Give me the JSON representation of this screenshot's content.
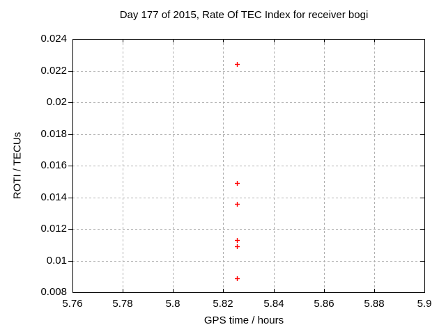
{
  "chart_data": {
    "type": "scatter",
    "title": "Day 177 of 2015, Rate Of TEC Index for receiver bogi",
    "xlabel": "GPS time / hours",
    "ylabel": "ROTI / TECUs",
    "xlim": [
      5.76,
      5.9
    ],
    "ylim": [
      0.008,
      0.024
    ],
    "xticks": [
      {
        "v": 5.76,
        "label": "5.76"
      },
      {
        "v": 5.78,
        "label": "5.78"
      },
      {
        "v": 5.8,
        "label": "5.8"
      },
      {
        "v": 5.82,
        "label": "5.82"
      },
      {
        "v": 5.84,
        "label": "5.84"
      },
      {
        "v": 5.86,
        "label": "5.86"
      },
      {
        "v": 5.88,
        "label": "5.88"
      },
      {
        "v": 5.9,
        "label": "5.9"
      }
    ],
    "yticks": [
      {
        "v": 0.008,
        "label": "0.008"
      },
      {
        "v": 0.01,
        "label": "0.01"
      },
      {
        "v": 0.012,
        "label": "0.012"
      },
      {
        "v": 0.014,
        "label": "0.014"
      },
      {
        "v": 0.016,
        "label": "0.016"
      },
      {
        "v": 0.018,
        "label": "0.018"
      },
      {
        "v": 0.02,
        "label": "0.02"
      },
      {
        "v": 0.022,
        "label": "0.022"
      },
      {
        "v": 0.024,
        "label": "0.024"
      }
    ],
    "grid": true,
    "legend": "none",
    "series": [
      {
        "name": "ROTI",
        "marker": "plus",
        "color": "#ff0000",
        "points": [
          [
            5.8255,
            0.0224
          ],
          [
            5.8255,
            0.0149
          ],
          [
            5.8255,
            0.0136
          ],
          [
            5.8253,
            0.0113
          ],
          [
            5.8253,
            0.0109
          ],
          [
            5.8253,
            0.0089
          ]
        ]
      }
    ],
    "colors": {
      "axis": "#000000",
      "grid": "#b0b0b0",
      "background": "#ffffff",
      "text": "#000000"
    }
  }
}
